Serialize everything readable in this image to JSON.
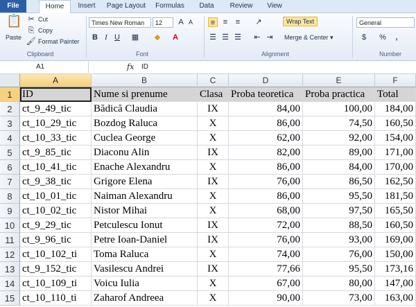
{
  "ribbon": {
    "tabs": [
      "File",
      "Home",
      "Insert",
      "Page Layout",
      "Formulas",
      "Data",
      "Review",
      "View"
    ],
    "clipboard": {
      "paste": "Paste",
      "cut": "Cut",
      "copy": "Copy",
      "format_painter": "Format Painter",
      "label": "Clipboard"
    },
    "font": {
      "name": "Times New Roman",
      "size": "12",
      "bold": "B",
      "italic": "I",
      "underline": "U",
      "label": "Font"
    },
    "alignment": {
      "wrap_text": "Wrap Text",
      "merge_center": "Merge & Center",
      "label": "Alignment"
    },
    "number": {
      "format": "General",
      "percent": "%",
      "comma": ",",
      "label": "Number"
    }
  },
  "formula_bar": {
    "name_box": "A1",
    "fx": "fx",
    "value": "ID"
  },
  "columns": [
    "A",
    "B",
    "C",
    "D",
    "E",
    "F"
  ],
  "header": [
    "ID",
    "Nume si prenume",
    "Clasa",
    "Proba teoretica",
    "Proba practica",
    "Total"
  ],
  "rows": [
    [
      "ct_9_49_tic",
      "Bădică Claudia",
      "IX",
      "84,00",
      "100,00",
      "184,00"
    ],
    [
      "ct_10_29_tic",
      "Bozdog Raluca",
      "X",
      "86,00",
      "74,50",
      "160,50"
    ],
    [
      "ct_10_33_tic",
      "Cuclea George",
      "X",
      "62,00",
      "92,00",
      "154,00"
    ],
    [
      "ct_9_85_tic",
      "Diaconu Alin",
      "IX",
      "82,00",
      "89,00",
      "171,00"
    ],
    [
      "ct_10_41_tic",
      "Enache Alexandru",
      "X",
      "86,00",
      "84,00",
      "170,00"
    ],
    [
      "ct_9_38_tic",
      "Grigore Elena",
      "IX",
      "76,00",
      "86,50",
      "162,50"
    ],
    [
      "ct_10_01_tic",
      "Naiman Alexandru",
      "X",
      "86,00",
      "95,50",
      "181,50"
    ],
    [
      "ct_10_02_tic",
      "Nistor Mihai",
      "X",
      "68,00",
      "97,50",
      "165,50"
    ],
    [
      "ct_9_29_tic",
      "Petculescu Ionut",
      "IX",
      "72,00",
      "88,50",
      "160,50"
    ],
    [
      "ct_9_96_tic",
      "Petre Ioan-Daniel",
      "IX",
      "76,00",
      "93,00",
      "169,00"
    ],
    [
      "ct_10_102_ti",
      "Toma Raluca",
      "X",
      "74,00",
      "76,00",
      "150,00"
    ],
    [
      "ct_9_152_tic",
      "Vasilescu Andrei",
      "IX",
      "77,66",
      "95,50",
      "173,16"
    ],
    [
      "ct_10_109_ti",
      "Voicu Iulia",
      "X",
      "67,00",
      "80,00",
      "147,00"
    ],
    [
      "ct_10_110_ti",
      "Zaharof Andreea",
      "X",
      "90,00",
      "73,00",
      "163,00"
    ]
  ]
}
